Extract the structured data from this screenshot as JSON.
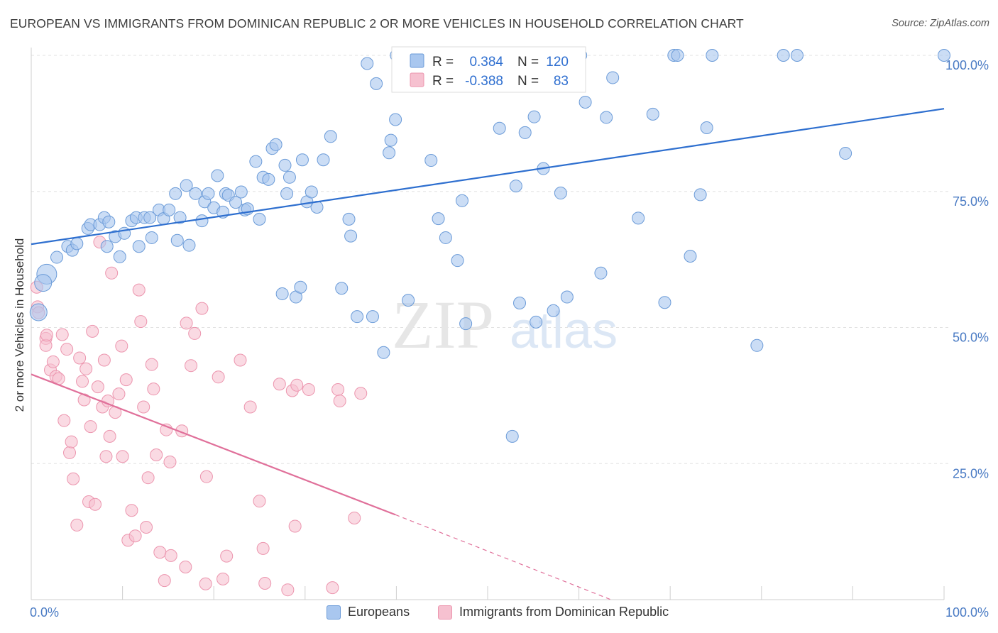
{
  "title": "EUROPEAN VS IMMIGRANTS FROM DOMINICAN REPUBLIC 2 OR MORE VEHICLES IN HOUSEHOLD CORRELATION CHART",
  "source": "Source: ZipAtlas.com",
  "colors": {
    "blue_fill": "#a9c7ef",
    "blue_stroke": "#6b9bd8",
    "blue_line": "#2e6fcf",
    "pink_fill": "#f6c1d0",
    "pink_stroke": "#ec95ae",
    "pink_line": "#e0709a"
  },
  "legend": {
    "r_label": "R =",
    "n_label": "N =",
    "europeans": {
      "r": "0.384",
      "n": "120"
    },
    "immigrants": {
      "r": "-0.388",
      "n": "83"
    }
  },
  "bottom_legend": {
    "europeans": "Europeans",
    "immigrants": "Immigrants from Dominican Republic"
  },
  "watermark": {
    "zip": "ZIP",
    "atlas": "atlas"
  },
  "chart_data": {
    "type": "scatter",
    "title": "EUROPEAN VS IMMIGRANTS FROM DOMINICAN REPUBLIC 2 OR MORE VEHICLES IN HOUSEHOLD CORRELATION CHART",
    "xlabel": "",
    "ylabel": "2 or more Vehicles in Household",
    "xlim": [
      0,
      100
    ],
    "ylim": [
      0,
      100
    ],
    "x_tick_labels": [
      "0.0%",
      "100.0%"
    ],
    "y_ticks": [
      25,
      50,
      75,
      100
    ],
    "y_tick_labels": [
      "25.0%",
      "50.0%",
      "75.0%",
      "100.0%"
    ],
    "grid": true,
    "legend_position": "top-center",
    "series": [
      {
        "name": "Europeans",
        "color": "#a9c7ef",
        "trend": {
          "x": [
            0,
            100
          ],
          "y": [
            65.3,
            90.2
          ]
        },
        "points": [
          [
            1.7,
            59.8
          ],
          [
            1.3,
            58.2
          ],
          [
            0.8,
            52.8
          ],
          [
            2.8,
            62.9
          ],
          [
            4.0,
            64.9
          ],
          [
            4.5,
            64.2
          ],
          [
            5.0,
            65.4
          ],
          [
            6.2,
            68.2
          ],
          [
            6.5,
            68.9
          ],
          [
            7.5,
            68.9
          ],
          [
            8.0,
            70.2
          ],
          [
            8.3,
            64.9
          ],
          [
            8.5,
            69.4
          ],
          [
            9.2,
            66.7
          ],
          [
            9.7,
            63.0
          ],
          [
            10.2,
            67.3
          ],
          [
            11.0,
            69.6
          ],
          [
            11.5,
            70.2
          ],
          [
            11.8,
            64.9
          ],
          [
            12.4,
            70.2
          ],
          [
            13.0,
            70.2
          ],
          [
            13.2,
            66.5
          ],
          [
            14.0,
            71.6
          ],
          [
            14.5,
            70.0
          ],
          [
            15.1,
            71.6
          ],
          [
            15.8,
            74.6
          ],
          [
            16.0,
            66.0
          ],
          [
            16.3,
            70.2
          ],
          [
            17.0,
            76.1
          ],
          [
            17.3,
            65.1
          ],
          [
            18.0,
            74.6
          ],
          [
            18.7,
            69.6
          ],
          [
            19.0,
            73.1
          ],
          [
            19.4,
            74.6
          ],
          [
            20.0,
            72.0
          ],
          [
            20.4,
            77.9
          ],
          [
            21.0,
            71.2
          ],
          [
            21.3,
            74.6
          ],
          [
            21.6,
            74.3
          ],
          [
            22.4,
            73.0
          ],
          [
            23.0,
            74.9
          ],
          [
            23.4,
            71.6
          ],
          [
            23.7,
            71.8
          ],
          [
            24.6,
            80.5
          ],
          [
            25.0,
            69.9
          ],
          [
            25.4,
            77.6
          ],
          [
            26.0,
            77.2
          ],
          [
            26.4,
            82.9
          ],
          [
            26.8,
            83.6
          ],
          [
            27.5,
            56.2
          ],
          [
            27.8,
            79.8
          ],
          [
            28.0,
            74.6
          ],
          [
            28.3,
            77.6
          ],
          [
            29.0,
            55.6
          ],
          [
            29.5,
            57.4
          ],
          [
            29.7,
            80.8
          ],
          [
            30.2,
            73.1
          ],
          [
            30.7,
            74.9
          ],
          [
            31.3,
            72.1
          ],
          [
            32.0,
            80.8
          ],
          [
            32.8,
            85.1
          ],
          [
            34.0,
            57.2
          ],
          [
            35.0,
            66.8
          ],
          [
            34.8,
            69.9
          ],
          [
            35.7,
            52.0
          ],
          [
            36.8,
            98.5
          ],
          [
            37.4,
            52.0
          ],
          [
            37.8,
            94.8
          ],
          [
            38.6,
            45.4
          ],
          [
            39.2,
            82.1
          ],
          [
            39.4,
            84.4
          ],
          [
            39.9,
            88.2
          ],
          [
            40.0,
            100.0
          ],
          [
            41.3,
            55.0
          ],
          [
            42.4,
            100.0
          ],
          [
            42.8,
            100.0
          ],
          [
            43.8,
            80.7
          ],
          [
            44.6,
            70.0
          ],
          [
            45.0,
            100.0
          ],
          [
            45.4,
            66.5
          ],
          [
            45.8,
            97.3
          ],
          [
            46.7,
            62.3
          ],
          [
            47.2,
            73.3
          ],
          [
            47.6,
            50.7
          ],
          [
            48.1,
            100.0
          ],
          [
            48.6,
            100.0
          ],
          [
            49.1,
            98.0
          ],
          [
            49.4,
            99.7
          ],
          [
            51.3,
            86.6
          ],
          [
            52.7,
            30.0
          ],
          [
            53.1,
            76.0
          ],
          [
            53.5,
            54.5
          ],
          [
            54.1,
            85.8
          ],
          [
            55.1,
            88.7
          ],
          [
            55.3,
            51.0
          ],
          [
            56.1,
            79.2
          ],
          [
            57.2,
            53.1
          ],
          [
            58.0,
            74.7
          ],
          [
            58.7,
            55.6
          ],
          [
            60.2,
            100.0
          ],
          [
            60.7,
            91.4
          ],
          [
            62.4,
            60.0
          ],
          [
            63.0,
            88.6
          ],
          [
            63.7,
            95.9
          ],
          [
            66.5,
            70.1
          ],
          [
            68.1,
            89.2
          ],
          [
            69.4,
            54.6
          ],
          [
            70.4,
            100.0
          ],
          [
            70.8,
            100.0
          ],
          [
            72.2,
            63.1
          ],
          [
            73.3,
            74.4
          ],
          [
            74.0,
            86.7
          ],
          [
            74.6,
            100.0
          ],
          [
            79.5,
            46.7
          ],
          [
            82.4,
            100.0
          ],
          [
            83.9,
            100.0
          ],
          [
            89.2,
            82.0
          ],
          [
            100.0,
            100.0
          ]
        ]
      },
      {
        "name": "Immigrants from Dominican Republic",
        "color": "#f6c1d0",
        "trend": {
          "x": [
            0,
            39.9
          ],
          "y": [
            41.4,
            15.6
          ]
        },
        "trend_dashed": {
          "x": [
            39.9,
            63.5
          ],
          "y": [
            15.6,
            0
          ]
        },
        "points": [
          [
            0.6,
            57.4
          ],
          [
            0.7,
            53.8
          ],
          [
            0.8,
            52.7
          ],
          [
            1.6,
            48.0
          ],
          [
            1.6,
            46.7
          ],
          [
            1.7,
            48.6
          ],
          [
            2.1,
            42.2
          ],
          [
            2.4,
            43.7
          ],
          [
            2.7,
            41.0
          ],
          [
            3.0,
            40.6
          ],
          [
            3.4,
            48.7
          ],
          [
            3.6,
            32.9
          ],
          [
            3.9,
            46.0
          ],
          [
            4.2,
            27.0
          ],
          [
            4.4,
            29.0
          ],
          [
            4.6,
            22.2
          ],
          [
            5.0,
            13.7
          ],
          [
            5.3,
            44.4
          ],
          [
            5.6,
            40.1
          ],
          [
            5.8,
            36.7
          ],
          [
            6.0,
            42.4
          ],
          [
            6.3,
            18.0
          ],
          [
            6.5,
            31.8
          ],
          [
            6.7,
            49.3
          ],
          [
            7.0,
            17.5
          ],
          [
            7.3,
            39.1
          ],
          [
            7.5,
            65.7
          ],
          [
            7.8,
            35.4
          ],
          [
            8.0,
            44.0
          ],
          [
            8.2,
            26.3
          ],
          [
            8.4,
            36.5
          ],
          [
            8.6,
            30.0
          ],
          [
            8.8,
            60.0
          ],
          [
            9.2,
            34.4
          ],
          [
            9.6,
            37.8
          ],
          [
            9.9,
            46.6
          ],
          [
            10.0,
            26.3
          ],
          [
            10.4,
            40.4
          ],
          [
            10.6,
            10.9
          ],
          [
            11.0,
            16.4
          ],
          [
            11.4,
            11.7
          ],
          [
            11.8,
            56.9
          ],
          [
            12.0,
            51.1
          ],
          [
            12.3,
            35.4
          ],
          [
            12.6,
            13.3
          ],
          [
            12.8,
            22.4
          ],
          [
            13.2,
            43.2
          ],
          [
            13.4,
            38.7
          ],
          [
            13.7,
            26.6
          ],
          [
            14.1,
            8.7
          ],
          [
            14.6,
            3.5
          ],
          [
            14.8,
            31.2
          ],
          [
            15.2,
            25.3
          ],
          [
            15.3,
            8.1
          ],
          [
            16.5,
            31.0
          ],
          [
            16.9,
            6.0
          ],
          [
            17.0,
            50.8
          ],
          [
            17.5,
            43.0
          ],
          [
            17.9,
            48.9
          ],
          [
            18.7,
            53.5
          ],
          [
            19.1,
            2.9
          ],
          [
            19.2,
            22.6
          ],
          [
            20.5,
            40.9
          ],
          [
            21.0,
            3.8
          ],
          [
            21.4,
            8.0
          ],
          [
            22.9,
            44.0
          ],
          [
            24.0,
            35.4
          ],
          [
            25.0,
            18.1
          ],
          [
            25.4,
            9.4
          ],
          [
            25.6,
            3.0
          ],
          [
            27.2,
            39.6
          ],
          [
            28.1,
            1.8
          ],
          [
            28.6,
            38.4
          ],
          [
            28.9,
            13.5
          ],
          [
            29.1,
            39.4
          ],
          [
            30.4,
            38.6
          ],
          [
            33.0,
            2.2
          ],
          [
            33.6,
            38.6
          ],
          [
            33.8,
            36.5
          ],
          [
            35.4,
            15.0
          ],
          [
            36.1,
            37.9
          ]
        ]
      }
    ]
  }
}
